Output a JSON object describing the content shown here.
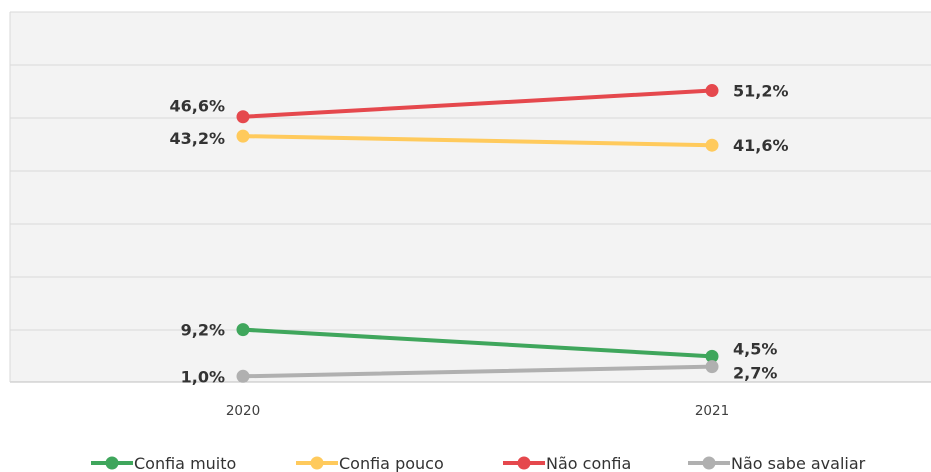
{
  "chart_data": {
    "type": "line",
    "categories": [
      "2020",
      "2021"
    ],
    "ylim": [
      0,
      65
    ],
    "grid": true,
    "legend_position": "bottom",
    "series": [
      {
        "name": "Confia muito",
        "values": [
          9.2,
          4.5
        ],
        "labels": [
          "9,2%",
          "4,5%"
        ],
        "color": "#3fa65c"
      },
      {
        "name": "Confia pouco",
        "values": [
          43.2,
          41.6
        ],
        "labels": [
          "43,2%",
          "41,6%"
        ],
        "color": "#ffca5c"
      },
      {
        "name": "Não confia",
        "values": [
          46.6,
          51.2
        ],
        "labels": [
          "46,6%",
          "51,2%"
        ],
        "color": "#e5484d"
      },
      {
        "name": "Não sabe avaliar",
        "values": [
          1.0,
          2.7
        ],
        "labels": [
          "1,0%",
          "2,7%"
        ],
        "color": "#b0b0b0"
      }
    ]
  },
  "colors": {
    "plot_background": "#f3f3f3",
    "gridline": "#d9d9d9",
    "axis": "#bfbfbf"
  }
}
